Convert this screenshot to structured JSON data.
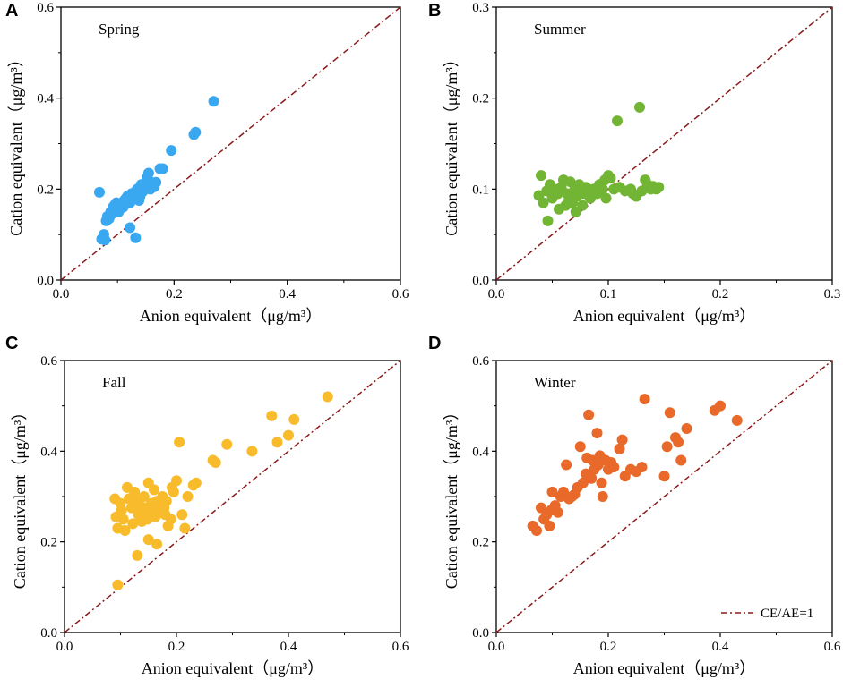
{
  "chart_data": [
    {
      "type": "scatter",
      "panel": "A",
      "title": "Spring",
      "xlabel": "Anion equivalent（μg/m³）",
      "ylabel": "Cation equivalent（μg/m³）",
      "xlim": [
        0,
        0.6
      ],
      "ylim": [
        0,
        0.6
      ],
      "xticks": [
        "0.0",
        "0.2",
        "0.4",
        "0.6"
      ],
      "yticks": [
        "0.0",
        "0.2",
        "0.4",
        "0.6"
      ],
      "color": "#3aa8f0",
      "reference_line": "CE/AE=1",
      "x": [
        0.068,
        0.072,
        0.076,
        0.078,
        0.08,
        0.082,
        0.085,
        0.088,
        0.09,
        0.092,
        0.095,
        0.098,
        0.1,
        0.102,
        0.105,
        0.108,
        0.11,
        0.112,
        0.115,
        0.118,
        0.12,
        0.122,
        0.125,
        0.128,
        0.13,
        0.132,
        0.135,
        0.138,
        0.14,
        0.142,
        0.145,
        0.148,
        0.15,
        0.152,
        0.155,
        0.158,
        0.16,
        0.165,
        0.168,
        0.175,
        0.18,
        0.195,
        0.235,
        0.238,
        0.27,
        0.122,
        0.132
      ],
      "y": [
        0.193,
        0.09,
        0.1,
        0.088,
        0.13,
        0.14,
        0.135,
        0.15,
        0.145,
        0.16,
        0.165,
        0.17,
        0.155,
        0.15,
        0.165,
        0.17,
        0.16,
        0.175,
        0.18,
        0.185,
        0.178,
        0.17,
        0.19,
        0.185,
        0.18,
        0.195,
        0.2,
        0.175,
        0.185,
        0.21,
        0.195,
        0.2,
        0.205,
        0.225,
        0.235,
        0.2,
        0.215,
        0.205,
        0.215,
        0.245,
        0.245,
        0.285,
        0.32,
        0.325,
        0.393,
        0.115,
        0.093
      ]
    },
    {
      "type": "scatter",
      "panel": "B",
      "title": "Summer",
      "xlabel": "Anion equivalent（μg/m³）",
      "ylabel": "Cation equivalent（μg/m³）",
      "xlim": [
        0,
        0.3
      ],
      "ylim": [
        0,
        0.3
      ],
      "xticks": [
        "0.0",
        "0.1",
        "0.2",
        "0.3"
      ],
      "yticks": [
        "0.0",
        "0.1",
        "0.2",
        "0.3"
      ],
      "color": "#72b534",
      "reference_line": "CE/AE=1",
      "x": [
        0.038,
        0.04,
        0.042,
        0.045,
        0.046,
        0.048,
        0.05,
        0.052,
        0.055,
        0.056,
        0.058,
        0.06,
        0.062,
        0.063,
        0.065,
        0.066,
        0.068,
        0.07,
        0.071,
        0.072,
        0.074,
        0.075,
        0.077,
        0.078,
        0.08,
        0.082,
        0.084,
        0.085,
        0.087,
        0.09,
        0.092,
        0.095,
        0.097,
        0.098,
        0.1,
        0.102,
        0.105,
        0.108,
        0.11,
        0.115,
        0.12,
        0.122,
        0.125,
        0.128,
        0.13,
        0.133,
        0.135,
        0.138,
        0.14,
        0.143,
        0.145
      ],
      "y": [
        0.093,
        0.115,
        0.085,
        0.098,
        0.065,
        0.105,
        0.09,
        0.1,
        0.095,
        0.078,
        0.102,
        0.11,
        0.082,
        0.095,
        0.088,
        0.108,
        0.085,
        0.1,
        0.075,
        0.092,
        0.105,
        0.098,
        0.082,
        0.095,
        0.102,
        0.1,
        0.09,
        0.097,
        0.1,
        0.095,
        0.105,
        0.1,
        0.11,
        0.09,
        0.115,
        0.112,
        0.1,
        0.175,
        0.102,
        0.098,
        0.1,
        0.095,
        0.092,
        0.19,
        0.098,
        0.11,
        0.105,
        0.1,
        0.103,
        0.1,
        0.102
      ]
    },
    {
      "type": "scatter",
      "panel": "C",
      "title": "Fall",
      "xlabel": "Anion equivalent（μg/m³）",
      "ylabel": "Cation equivalent（μg/m³）",
      "xlim": [
        0,
        0.6
      ],
      "ylim": [
        0,
        0.6
      ],
      "xticks": [
        "0.0",
        "0.2",
        "0.4",
        "0.6"
      ],
      "yticks": [
        "0.0",
        "0.2",
        "0.4",
        "0.6"
      ],
      "color": "#f7bb2c",
      "reference_line": "CE/AE=1",
      "x": [
        0.09,
        0.092,
        0.095,
        0.1,
        0.102,
        0.105,
        0.108,
        0.112,
        0.115,
        0.12,
        0.122,
        0.125,
        0.13,
        0.132,
        0.135,
        0.138,
        0.14,
        0.142,
        0.145,
        0.148,
        0.15,
        0.152,
        0.155,
        0.158,
        0.16,
        0.162,
        0.165,
        0.168,
        0.17,
        0.172,
        0.175,
        0.178,
        0.18,
        0.182,
        0.185,
        0.19,
        0.192,
        0.195,
        0.2,
        0.205,
        0.21,
        0.215,
        0.22,
        0.23,
        0.235,
        0.265,
        0.27,
        0.29,
        0.335,
        0.37,
        0.38,
        0.4,
        0.41,
        0.47,
        0.095,
        0.13,
        0.15,
        0.165
      ],
      "y": [
        0.295,
        0.255,
        0.23,
        0.285,
        0.27,
        0.25,
        0.225,
        0.32,
        0.295,
        0.275,
        0.24,
        0.31,
        0.29,
        0.26,
        0.28,
        0.245,
        0.265,
        0.3,
        0.275,
        0.25,
        0.33,
        0.26,
        0.285,
        0.27,
        0.315,
        0.255,
        0.29,
        0.27,
        0.28,
        0.265,
        0.3,
        0.275,
        0.26,
        0.29,
        0.235,
        0.25,
        0.32,
        0.31,
        0.335,
        0.42,
        0.26,
        0.23,
        0.3,
        0.325,
        0.33,
        0.38,
        0.375,
        0.415,
        0.4,
        0.478,
        0.42,
        0.435,
        0.47,
        0.52,
        0.105,
        0.17,
        0.205,
        0.195
      ]
    },
    {
      "type": "scatter",
      "panel": "D",
      "title": "Winter",
      "xlabel": "Anion equivalent（μg/m³）",
      "ylabel": "Cation equivalent（μg/m³）",
      "xlim": [
        0,
        0.6
      ],
      "ylim": [
        0,
        0.6
      ],
      "xticks": [
        "0.0",
        "0.2",
        "0.4",
        "0.6"
      ],
      "yticks": [
        "0.0",
        "0.2",
        "0.4",
        "0.6"
      ],
      "color": "#e8692a",
      "legend": "CE/AE=1",
      "reference_line": "CE/AE=1",
      "x": [
        0.065,
        0.072,
        0.08,
        0.085,
        0.09,
        0.095,
        0.098,
        0.1,
        0.105,
        0.11,
        0.115,
        0.12,
        0.125,
        0.13,
        0.135,
        0.14,
        0.145,
        0.15,
        0.155,
        0.16,
        0.162,
        0.165,
        0.17,
        0.172,
        0.175,
        0.178,
        0.18,
        0.182,
        0.185,
        0.188,
        0.19,
        0.195,
        0.2,
        0.205,
        0.21,
        0.22,
        0.225,
        0.23,
        0.24,
        0.25,
        0.26,
        0.265,
        0.3,
        0.305,
        0.31,
        0.32,
        0.325,
        0.33,
        0.34,
        0.39,
        0.4,
        0.43
      ],
      "y": [
        0.235,
        0.225,
        0.275,
        0.25,
        0.26,
        0.235,
        0.27,
        0.31,
        0.28,
        0.265,
        0.3,
        0.31,
        0.37,
        0.295,
        0.3,
        0.305,
        0.32,
        0.41,
        0.33,
        0.35,
        0.385,
        0.48,
        0.34,
        0.38,
        0.36,
        0.375,
        0.44,
        0.37,
        0.39,
        0.33,
        0.3,
        0.38,
        0.36,
        0.375,
        0.365,
        0.405,
        0.425,
        0.345,
        0.36,
        0.355,
        0.365,
        0.515,
        0.345,
        0.41,
        0.485,
        0.43,
        0.42,
        0.38,
        0.45,
        0.49,
        0.5,
        0.468
      ]
    }
  ]
}
